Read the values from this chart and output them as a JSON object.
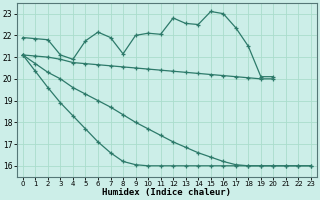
{
  "background_color": "#cceee8",
  "grid_color": "#aaddcc",
  "line_color": "#2d7a6a",
  "xlabel": "Humidex (Indice chaleur)",
  "xlim": [
    -0.5,
    23.5
  ],
  "ylim": [
    15.5,
    23.5
  ],
  "yticks": [
    16,
    17,
    18,
    19,
    20,
    21,
    22,
    23
  ],
  "xticks": [
    0,
    1,
    2,
    3,
    4,
    5,
    6,
    7,
    8,
    9,
    10,
    11,
    12,
    13,
    14,
    15,
    16,
    17,
    18,
    19,
    20,
    21,
    22,
    23
  ],
  "series1_x": [
    0,
    1,
    2,
    3,
    4,
    5,
    6,
    7,
    8,
    9,
    10,
    11,
    12,
    13,
    14,
    15,
    16,
    17,
    18,
    19,
    20
  ],
  "series1_y": [
    21.9,
    21.85,
    21.8,
    21.1,
    20.9,
    21.75,
    22.15,
    21.9,
    21.15,
    22.0,
    22.1,
    22.05,
    22.8,
    22.55,
    22.5,
    23.1,
    23.0,
    22.35,
    21.5,
    20.1,
    20.1
  ],
  "series2_x": [
    0,
    1,
    2,
    3,
    4,
    5,
    6,
    7,
    8,
    9,
    10,
    11,
    12,
    13,
    14,
    15,
    16,
    17,
    18,
    19,
    20
  ],
  "series2_y": [
    21.1,
    21.05,
    21.0,
    20.9,
    20.75,
    20.7,
    20.65,
    20.6,
    20.55,
    20.5,
    20.45,
    20.4,
    20.35,
    20.3,
    20.25,
    20.2,
    20.15,
    20.1,
    20.05,
    20.0,
    20.0
  ],
  "series3_x": [
    0,
    1,
    2,
    3,
    4,
    5,
    6,
    7,
    8,
    9,
    10,
    11,
    12,
    13,
    14,
    15,
    16,
    17,
    18,
    19,
    20,
    21,
    22,
    23
  ],
  "series3_y": [
    21.1,
    20.7,
    20.3,
    20.0,
    19.6,
    19.3,
    19.0,
    18.7,
    18.35,
    18.0,
    17.7,
    17.4,
    17.1,
    16.85,
    16.6,
    16.4,
    16.2,
    16.05,
    16.0,
    16.0,
    16.0,
    16.0,
    16.0,
    16.0
  ],
  "series4_x": [
    0,
    1,
    2,
    3,
    4,
    5,
    6,
    7,
    8,
    9,
    10,
    11,
    12,
    13,
    14,
    15,
    16,
    17,
    18,
    19,
    20,
    21,
    22,
    23
  ],
  "series4_y": [
    21.1,
    20.35,
    19.6,
    18.9,
    18.3,
    17.7,
    17.1,
    16.6,
    16.2,
    16.05,
    16.0,
    16.0,
    16.0,
    16.0,
    16.0,
    16.0,
    16.0,
    16.0,
    16.0,
    16.0,
    16.0,
    16.0,
    16.0,
    16.0
  ]
}
